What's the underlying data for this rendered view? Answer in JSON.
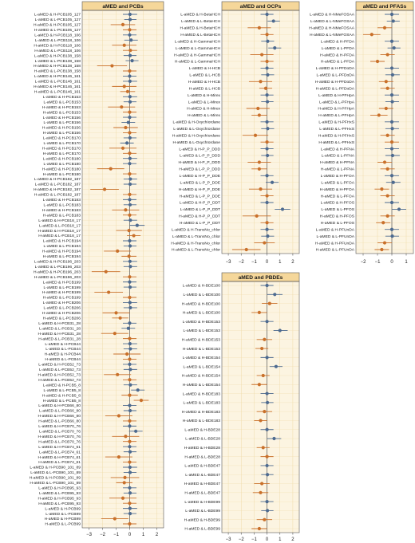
{
  "colors": {
    "panel_bg": "#fcf4e1",
    "header_bg": "#f5d79a",
    "grid": "#f0dcaa",
    "zero_line": "#555555",
    "border": "#555555",
    "blue_marker": "#4d6a8f",
    "orange_marker": "#c9702a"
  },
  "chart_data": [
    {
      "type": "forest",
      "title": "aMED and PCBs",
      "xlim": [
        -3.5,
        2.5
      ],
      "xticks": [
        -3,
        -2,
        -1,
        0,
        1,
        2
      ],
      "labels": [
        "L-aMED & H-PCB105_127",
        "L-aMED & L-PCB105_127",
        "H-aMED & H-PCB105_127",
        "H-aMED & L-PCB105_127",
        "L-aMED & H-PCB118_106",
        "L-aMED & L-PCB118_106",
        "H-aMED & H-PCB118_106",
        "H-aMED & L-PCB118_106",
        "L-aMED & H-PCB138_158",
        "L-aMED & L-PCB138_158",
        "H-aMED & H-PCB138_158",
        "H-aMED & L-PCB138_158",
        "L-aMED & H-PCB146_161",
        "L-aMED & L-PCB146_161",
        "H-aMED & H-PCB146_161",
        "H-aMED & L-PCB146_161",
        "L-aMED & H-PCB153",
        "L-aMED & L-PCB153",
        "H-aMED & H-PCB153",
        "H-aMED & L-PCB153",
        "L-aMED & H-PCB156",
        "L-aMED & L-PCB156",
        "H-aMED & H-PCB156",
        "H-aMED & L-PCB156",
        "L-aMED & H-PCB170",
        "L-aMED & L-PCB170",
        "H-aMED & H-PCB170",
        "H-aMED & L-PCB170",
        "L-aMED & H-PCB180",
        "L-aMED & L-PCB180",
        "H-aMED & H-PCB180",
        "H-aMED & L-PCB180",
        "L-aMED & H-PCB182_187",
        "L-aMED & L-PCB182_187",
        "H-aMED & H-PCB182_187",
        "H-aMED & L-PCB182_187",
        "L-aMED & H-PCB183",
        "L-aMED & L-PCB183",
        "H-aMED & H-PCB183",
        "H-aMED & L-PCB183",
        "L-aMED & H-PCB18_17",
        "L-aMED & L-PCB18_17",
        "H-aMED & H-PCB18_17",
        "H-aMED & L-PCB18_17",
        "L-aMED & H-PCB194",
        "L-aMED & L-PCB194",
        "H-aMED & H-PCB194",
        "H-aMED & L-PCB194",
        "L-aMED & H-PCB196_203",
        "L-aMED & L-PCB196_203",
        "H-aMED & H-PCB196_203",
        "H-aMED & L-PCB196_203",
        "L-aMED & H-PCB199",
        "L-aMED & L-PCB199",
        "H-aMED & H-PCB199",
        "H-aMED & L-PCB199",
        "L-aMED & H-PCB206",
        "L-aMED & L-PCB206",
        "H-aMED & H-PCB206",
        "H-aMED & L-PCB206",
        "L-aMED & H-PCB31_28",
        "L-aMED & L-PCB31_28",
        "H-aMED & H-PCB31_28",
        "H-aMED & L-PCB31_28",
        "L-aMED & H-PCB44",
        "L-aMED & L-PCB44",
        "H-aMED & H-PCB44",
        "H-aMED & L-PCB44",
        "L-aMED & H-PCB52_73",
        "L-aMED & L-PCB52_73",
        "H-aMED & H-PCB52_73",
        "H-aMED & L-PCB52_73",
        "L-aMED & H-PCB5_8",
        "L-aMED & L-PCB5_8",
        "H-aMED & H-PCB5_8",
        "H-aMED & L-PCB5_8",
        "L-aMED & H-PCB66_80",
        "L-aMED & L-PCB66_80",
        "H-aMED & H-PCB66_80",
        "H-aMED & L-PCB66_80",
        "L-aMED & H-PCB70_76",
        "L-aMED & L-PCB70_76",
        "H-aMED & H-PCB70_76",
        "H-aMED & L-PCB70_76",
        "L-aMED & H-PCB74_61",
        "L-aMED & L-PCB74_61",
        "H-aMED & H-PCB74_61",
        "H-aMED & L-PCB74_61",
        "L-aMED & H-PCB90_101_89",
        "L-aMED & L-PCB90_101_89",
        "H-aMED & H-PCB90_101_89",
        "H-aMED & L-PCB90_101_89",
        "L-aMED & H-PCB95_93",
        "L-aMED & L-PCB95_93",
        "H-aMED & H-PCB95_93",
        "H-aMED & L-PCB95_93",
        "L-aMED & H-PCB99",
        "L-aMED & L-PCB99",
        "H-aMED & H-PCB99",
        "H-aMED & L-PCB99"
      ],
      "estimates": [
        0.02,
        0.03,
        -0.5,
        0.0,
        0.0,
        0.1,
        -0.4,
        0.05,
        0.03,
        0.18,
        -1.3,
        0.0,
        0.0,
        0.02,
        -0.4,
        -0.15,
        0.02,
        0.03,
        -0.6,
        0.0,
        0.0,
        -0.1,
        -0.3,
        0.0,
        0.02,
        -0.2,
        -0.5,
        0.0,
        0.02,
        0.0,
        -1.4,
        0.0,
        0.05,
        0.03,
        -1.85,
        0.0,
        0.0,
        0.03,
        -0.3,
        0.0,
        0.05,
        0.55,
        -0.05,
        0.3,
        0.0,
        0.03,
        -0.9,
        -0.05,
        0.02,
        0.05,
        -1.75,
        0.0,
        0.0,
        0.03,
        -1.55,
        0.0,
        0.02,
        0.05,
        -1.0,
        -0.7,
        0.0,
        -0.1,
        -1.1,
        0.0,
        0.02,
        0.05,
        -0.2,
        0.0,
        0.0,
        0.05,
        -0.9,
        0.0,
        0.05,
        0.6,
        0.0,
        0.85,
        0.0,
        0.03,
        -0.8,
        0.0,
        0.0,
        0.45,
        -0.3,
        0.0,
        0.0,
        0.03,
        -0.8,
        0.0,
        0.02,
        0.03,
        -0.35,
        -0.4,
        0.0,
        0.03,
        -0.5,
        0.0,
        0.02,
        0.03,
        -1.1,
        0.0
      ],
      "ci_low": [
        -0.5,
        -0.4,
        -1.4,
        -0.5,
        -0.5,
        -0.4,
        -1.3,
        -0.5,
        -0.45,
        -0.3,
        -2.4,
        -0.5,
        -0.5,
        -0.5,
        -1.3,
        -0.7,
        -0.5,
        -0.45,
        -1.6,
        -0.5,
        -0.5,
        -0.6,
        -1.2,
        -0.5,
        -0.45,
        -0.7,
        -1.5,
        -0.5,
        -0.5,
        -0.5,
        -2.4,
        -0.5,
        -0.45,
        -0.45,
        -2.9,
        -0.5,
        -0.5,
        -0.45,
        -1.3,
        -0.5,
        -0.45,
        0.0,
        -1.0,
        -0.2,
        -0.5,
        -0.45,
        -1.9,
        -0.6,
        -0.5,
        -0.45,
        -2.8,
        -0.5,
        -0.5,
        -0.45,
        -2.6,
        -0.5,
        -0.5,
        -0.45,
        -2.0,
        -1.3,
        -0.5,
        -0.6,
        -2.1,
        -0.5,
        -0.5,
        -0.45,
        -1.2,
        -0.5,
        -0.5,
        -0.45,
        -1.9,
        -0.5,
        -0.45,
        0.1,
        -0.6,
        0.3,
        -0.5,
        -0.45,
        -1.8,
        -0.5,
        -0.5,
        -0.05,
        -1.3,
        -0.5,
        -0.5,
        -0.45,
        -1.8,
        -0.5,
        -0.5,
        -0.45,
        -1.4,
        -1.0,
        -0.5,
        -0.45,
        -1.5,
        -0.5,
        -0.5,
        -0.45,
        -2.1,
        -0.5
      ],
      "ci_high": [
        0.55,
        0.5,
        0.4,
        0.5,
        0.5,
        0.6,
        0.5,
        0.55,
        0.5,
        0.65,
        -0.2,
        0.5,
        0.5,
        0.55,
        0.5,
        0.4,
        0.55,
        0.5,
        0.4,
        0.5,
        0.5,
        0.4,
        0.6,
        0.5,
        0.5,
        0.3,
        0.5,
        0.5,
        0.55,
        0.5,
        -0.4,
        0.5,
        0.55,
        0.5,
        -0.8,
        0.5,
        0.5,
        0.5,
        0.7,
        0.5,
        0.55,
        1.1,
        0.9,
        0.8,
        0.5,
        0.5,
        0.1,
        0.5,
        0.55,
        0.55,
        -0.7,
        0.5,
        0.5,
        0.5,
        -0.5,
        0.5,
        0.55,
        0.55,
        0.0,
        -0.1,
        0.5,
        0.4,
        -0.1,
        0.5,
        0.55,
        0.55,
        0.8,
        0.5,
        0.5,
        0.55,
        0.1,
        0.5,
        0.55,
        1.1,
        0.6,
        1.4,
        0.5,
        0.5,
        0.2,
        0.5,
        0.5,
        0.95,
        0.7,
        0.5,
        0.5,
        0.5,
        0.2,
        0.5,
        0.55,
        0.5,
        0.7,
        0.2,
        0.5,
        0.5,
        0.5,
        0.5,
        0.55,
        0.5,
        -0.1,
        0.5
      ]
    },
    {
      "type": "forest",
      "title": "aMED and OCPs",
      "xlim": [
        -3.5,
        2.5
      ],
      "xticks": [
        -3,
        -2,
        -1,
        0,
        1,
        2
      ],
      "labels": [
        "L-aMED & H-BetaHCH",
        "L-aMED & L-BetaHCH",
        "H-aMED & H-BetaHCH",
        "H-aMED & L-BetaHCH",
        "L-aMED & H-GammaHCH",
        "L-aMED & L-GammaHCH",
        "H-aMED & H-GammaHCH",
        "H-aMED & L-GammaHCH",
        "L-aMED & H-HCB",
        "L-aMED & L-HCB",
        "H-aMED & H-HCB",
        "H-aMED & L-HCB",
        "L-aMED & H-Mirex",
        "L-aMED & L-Mirex",
        "H-aMED & H-Mirex",
        "H-aMED & L-Mirex",
        "L-aMED & H-OxychIordane",
        "L-aMED & L-OxychIordane",
        "H-aMED & H-OxychIordane",
        "H-aMED & L-OxychIordane",
        "L-aMED & H-P_P_DDD",
        "L-aMED & L-P_P_DDD",
        "H-aMED & H-P_P_DDD",
        "H-aMED & L-P_P_DDD",
        "L-aMED & H-P_P_DDE",
        "L-aMED & L-P_P_DDE",
        "H-aMED & H-P_P_DDE",
        "H-aMED & L-P_P_DDE",
        "L-aMED & H-P_P_DDT",
        "L-aMED & L-P_P_DDT",
        "H-aMED & H-P_P_DDT",
        "H-aMED & L-P_P_DDT",
        "L-aMED & H-TransNo_chlor",
        "L-aMED & L-TransNo_chlor",
        "H-aMED & H-TransNo_chlor",
        "H-aMED & L-TransNo_chlor"
      ],
      "estimates": [
        0.0,
        0.5,
        -0.6,
        0.0,
        0.05,
        0.6,
        -0.4,
        0.0,
        0.0,
        0.05,
        -0.5,
        -0.1,
        0.0,
        0.03,
        -0.7,
        -0.6,
        0.0,
        0.05,
        -0.9,
        0.0,
        0.0,
        0.03,
        -0.6,
        -0.6,
        0.0,
        0.4,
        -0.5,
        0.0,
        0.0,
        1.2,
        -0.8,
        0.0,
        0.0,
        0.05,
        -0.2,
        -1.6
      ],
      "ci_low": [
        -0.5,
        0.05,
        -1.5,
        -0.5,
        -0.45,
        0.1,
        -1.3,
        -0.5,
        -0.5,
        -0.45,
        -1.4,
        -0.6,
        -0.5,
        -0.45,
        -1.6,
        -1.2,
        -0.5,
        -0.45,
        -1.9,
        -0.5,
        -0.5,
        -0.45,
        -1.5,
        -1.2,
        -0.5,
        -0.1,
        -1.4,
        -0.5,
        -0.5,
        0.6,
        -1.9,
        -0.5,
        -0.5,
        -0.45,
        -1.0,
        -2.7
      ],
      "ci_high": [
        0.5,
        1.0,
        0.3,
        0.5,
        0.55,
        1.1,
        0.5,
        0.5,
        0.5,
        0.55,
        0.4,
        0.4,
        0.5,
        0.5,
        0.2,
        0.0,
        0.5,
        0.55,
        0.1,
        0.5,
        0.5,
        0.5,
        0.3,
        0.0,
        0.5,
        0.9,
        0.4,
        0.5,
        0.5,
        1.8,
        0.3,
        0.5,
        0.5,
        0.55,
        0.6,
        -0.5
      ]
    },
    {
      "type": "forest",
      "title": "aMED and PFASs",
      "xlim": [
        -2.5,
        1.5
      ],
      "xticks": [
        -2,
        -1,
        0,
        1
      ],
      "labels": [
        "L-aMED & H-NMeFOSAA",
        "L-aMED & L-NMeFOSAA",
        "H-aMED & H-NMeFOSAA",
        "H-aMED & L-NMeFOSAA",
        "L-aMED & H-PFDA",
        "L-aMED & L-PFDA",
        "H-aMED & H-PFDA",
        "H-aMED & L-PFDA",
        "L-aMED & H-PFDoDA",
        "L-aMED & L-PFDoDA",
        "H-aMED & H-PFDoDA",
        "H-aMED & L-PFDoDA",
        "L-aMED & H-PFHpA",
        "L-aMED & L-PFHpA",
        "H-aMED & H-PFHpA",
        "H-aMED & L-PFHpA",
        "L-aMED & H-PFHxS",
        "L-aMED & L-PFHxS",
        "H-aMED & H-PFHxS",
        "H-aMED & L-PFHxS",
        "L-aMED & H-PFNA",
        "L-aMED & L-PFNA",
        "H-aMED & H-PFNA",
        "H-aMED & L-PFNA",
        "L-aMED & H-PFOA",
        "L-aMED & L-PFOA",
        "H-aMED & H-PFOA",
        "H-aMED & L-PFOA",
        "L-aMED & H-PFOS",
        "L-aMED & L-PFOS",
        "H-aMED & H-PFOS",
        "H-aMED & L-PFOS",
        "L-aMED & H-PFUnDA",
        "L-aMED & L-PFUnDA",
        "H-aMED & H-PFUnDA",
        "H-aMED & L-PFUnDA"
      ],
      "estimates": [
        0.0,
        0.1,
        -0.5,
        -1.4,
        0.0,
        0.15,
        -0.3,
        -1.0,
        0.0,
        0.05,
        -0.4,
        -0.3,
        0.0,
        0.03,
        -0.4,
        -0.9,
        0.0,
        0.03,
        -0.3,
        0.0,
        0.0,
        0.05,
        -0.5,
        -0.3,
        0.0,
        0.1,
        -0.7,
        -0.3,
        0.0,
        0.5,
        -0.3,
        -0.6,
        0.0,
        0.03,
        -0.5,
        -0.7
      ],
      "ci_low": [
        -0.5,
        -0.35,
        -1.0,
        -2.0,
        -0.5,
        -0.3,
        -0.8,
        -1.5,
        -0.5,
        -0.45,
        -0.9,
        -0.8,
        -0.5,
        -0.45,
        -0.9,
        -1.5,
        -0.5,
        -0.45,
        -0.8,
        -0.5,
        -0.5,
        -0.45,
        -1.0,
        -0.8,
        -0.5,
        -0.4,
        -1.2,
        -0.8,
        -0.5,
        0.0,
        -0.8,
        -1.1,
        -0.5,
        -0.45,
        -1.0,
        -1.2
      ],
      "ci_high": [
        0.5,
        0.55,
        0.0,
        -0.8,
        0.5,
        0.6,
        0.2,
        -0.5,
        0.5,
        0.55,
        0.1,
        0.2,
        0.5,
        0.5,
        0.1,
        -0.3,
        0.5,
        0.5,
        0.2,
        0.5,
        0.5,
        0.55,
        0.0,
        0.2,
        0.5,
        0.6,
        -0.2,
        0.2,
        0.5,
        1.0,
        0.2,
        -0.1,
        0.5,
        0.5,
        0.0,
        -0.2
      ]
    },
    {
      "type": "forest",
      "title": "aMED and PBDEs",
      "xlim": [
        -3.5,
        2.5
      ],
      "xticks": [
        -3,
        -2,
        -1,
        0,
        1,
        2
      ],
      "labels": [
        "L-aMED & H-BDE100",
        "L-aMED & L-BDE100",
        "H-aMED & H-BDE100",
        "H-aMED & L-BDE100",
        "L-aMED & H-BDE153",
        "L-aMED & L-BDE153",
        "H-aMED & H-BDE153",
        "H-aMED & L-BDE153",
        "L-aMED & H-BDE154",
        "L-aMED & L-BDE154",
        "H-aMED & H-BDE154",
        "H-aMED & L-BDE154",
        "L-aMED & H-BDE183",
        "L-aMED & L-BDE183",
        "H-aMED & H-BDE183",
        "H-aMED & L-BDE183",
        "L-aMED & H-BDE28",
        "L-aMED & L-BDE28",
        "H-aMED & H-BDE28",
        "H-aMED & L-BDE28",
        "L-aMED & H-BDE47",
        "L-aMED & L-BDE47",
        "H-aMED & H-BDE47",
        "H-aMED & L-BDE47",
        "L-aMED & H-BDE99",
        "L-aMED & L-BDE99",
        "H-aMED & H-BDE99",
        "H-aMED & L-BDE99"
      ],
      "estimates": [
        0.0,
        0.6,
        0.2,
        -0.6,
        0.0,
        1.0,
        -0.2,
        -0.4,
        0.0,
        0.7,
        -0.3,
        -0.6,
        0.0,
        0.03,
        -0.2,
        -0.5,
        0.0,
        0.55,
        -0.3,
        0.0,
        0.0,
        0.03,
        -0.4,
        -0.5,
        0.0,
        0.03,
        -0.2,
        -0.6
      ],
      "ci_low": [
        -0.5,
        0.0,
        -0.4,
        -1.2,
        -0.5,
        0.5,
        -0.8,
        -0.9,
        -0.5,
        0.2,
        -0.8,
        -1.2,
        -0.5,
        -0.45,
        -0.8,
        -1.0,
        -0.5,
        0.0,
        -0.8,
        -0.5,
        -0.5,
        -0.45,
        -1.0,
        -1.1,
        -0.5,
        -0.45,
        -0.8,
        -1.2
      ],
      "ci_high": [
        0.5,
        1.2,
        0.8,
        0.0,
        0.5,
        1.6,
        0.4,
        0.1,
        0.5,
        1.2,
        0.2,
        0.0,
        0.5,
        0.5,
        0.4,
        0.0,
        0.5,
        1.1,
        0.2,
        0.5,
        0.5,
        0.5,
        0.2,
        0.1,
        0.5,
        0.5,
        0.4,
        0.0
      ]
    }
  ]
}
